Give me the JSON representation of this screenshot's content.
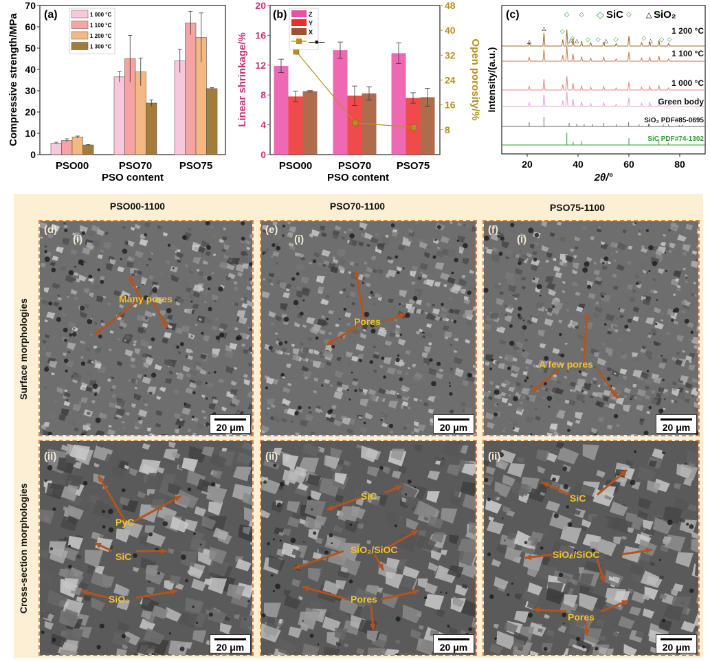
{
  "panel_a": {
    "label": "(a)",
    "chart_data": {
      "type": "bar",
      "categories": [
        "PSO00",
        "PSO70",
        "PSO75"
      ],
      "series": [
        {
          "name": "1 000 °C",
          "values": [
            5.3,
            36.5,
            44
          ],
          "errors": [
            0.5,
            2.5,
            5.5
          ],
          "color": "#f9c7dc"
        },
        {
          "name": "1 100 °C",
          "values": [
            6.6,
            45,
            61.8
          ],
          "errors": [
            0.8,
            11,
            5.5
          ],
          "color": "#f5a3a3"
        },
        {
          "name": "1 200 °C",
          "values": [
            8.3,
            38.8,
            55
          ],
          "errors": [
            0.4,
            6.5,
            11.5
          ],
          "color": "#f4b885"
        },
        {
          "name": "1 300 °C",
          "values": [
            4.5,
            24.2,
            31
          ],
          "errors": [
            0.2,
            1.5,
            0.4
          ],
          "color": "#a37b3a"
        }
      ],
      "xlabel": "PSO content",
      "ylabel": "Compressive strength/MPa",
      "ylim": [
        0,
        70
      ],
      "yticks": [
        "0",
        "10",
        "20",
        "30",
        "40",
        "50",
        "60",
        "70"
      ]
    }
  },
  "panel_b": {
    "label": "(b)",
    "chart_data": {
      "type": "bar",
      "categories": [
        "PSO00",
        "PSO70",
        "PSO75"
      ],
      "series": [
        {
          "name": "Z",
          "values": [
            11.9,
            14.0,
            13.6
          ],
          "errors": [
            0.9,
            1.1,
            1.4
          ],
          "color": "#ec4fa4"
        },
        {
          "name": "Y",
          "values": [
            7.8,
            7.9,
            7.6
          ],
          "errors": [
            0.7,
            1.3,
            0.7
          ],
          "color": "#ee2a2a"
        },
        {
          "name": "X",
          "values": [
            8.5,
            8.2,
            7.7
          ],
          "errors": [
            0.1,
            0.9,
            1.2
          ],
          "color": "#a0522d"
        }
      ],
      "line_series": {
        "name": "—■—",
        "values": [
          33.2,
          10.2,
          8.8
        ],
        "errors": [
          1.2,
          0.8,
          0.5
        ],
        "color": "#b5901f"
      },
      "xlabel": "PSO content",
      "ylabel": "Linear shrinkage/%",
      "y2label": "Open porosity/%",
      "ylim": [
        0,
        20
      ],
      "y2lim": [
        0,
        48
      ],
      "yticks": [
        "0",
        "4",
        "8",
        "12",
        "16",
        "20"
      ],
      "y2ticks": [
        "8",
        "16",
        "24",
        "32",
        "40",
        "48"
      ]
    }
  },
  "panel_c": {
    "label": "(c)",
    "chart_data": {
      "type": "line",
      "xlabel": "2θ/°",
      "ylabel": "Intensity/(a.u.)",
      "xlim": [
        10,
        90
      ],
      "xticks": [
        "20",
        "40",
        "60",
        "80"
      ],
      "legend": [
        {
          "symbol": "◇",
          "name": "SiC",
          "color": "#2e9b2e"
        },
        {
          "symbol": "△",
          "name": "SiO₂",
          "color": "#111111"
        }
      ],
      "traces": [
        {
          "name": "1 200 °C",
          "color": "#9a6a1e"
        },
        {
          "name": "1 100 °C",
          "color": "#c97a48"
        },
        {
          "name": "1 000 °C",
          "color": "#e58080"
        },
        {
          "name": "Green body",
          "color": "#e2a0d8"
        },
        {
          "name": "SiO₂ PDF#85-0695",
          "color": "#666666"
        },
        {
          "name": "SiC PDF#74-1302",
          "color": "#2e9b2e"
        }
      ]
    }
  },
  "sem": {
    "columns": [
      "PSO00-1100",
      "PSO70-1100",
      "PSO75-1100"
    ],
    "rows": [
      "Surface morphologies",
      "Cross-section morphologies"
    ],
    "scale_bar": "20 μm",
    "panels": [
      {
        "label": "(d)",
        "sub": "(i)",
        "annotations": [
          "Many pores"
        ]
      },
      {
        "label": "(e)",
        "sub": "(i)",
        "annotations": [
          "Pores"
        ]
      },
      {
        "label": "(f)",
        "sub": "(i)",
        "annotations": [
          "A few pores"
        ]
      },
      {
        "label": "",
        "sub": "(ii)",
        "annotations": [
          "PyC",
          "SiC",
          "SiO₂"
        ]
      },
      {
        "label": "",
        "sub": "(ii)",
        "annotations": [
          "SiC",
          "SiO₂/SiOC",
          "Pores"
        ]
      },
      {
        "label": "",
        "sub": "(ii)",
        "annotations": [
          "SiC",
          "SiO₂/SiOC",
          "Pores"
        ]
      }
    ]
  }
}
